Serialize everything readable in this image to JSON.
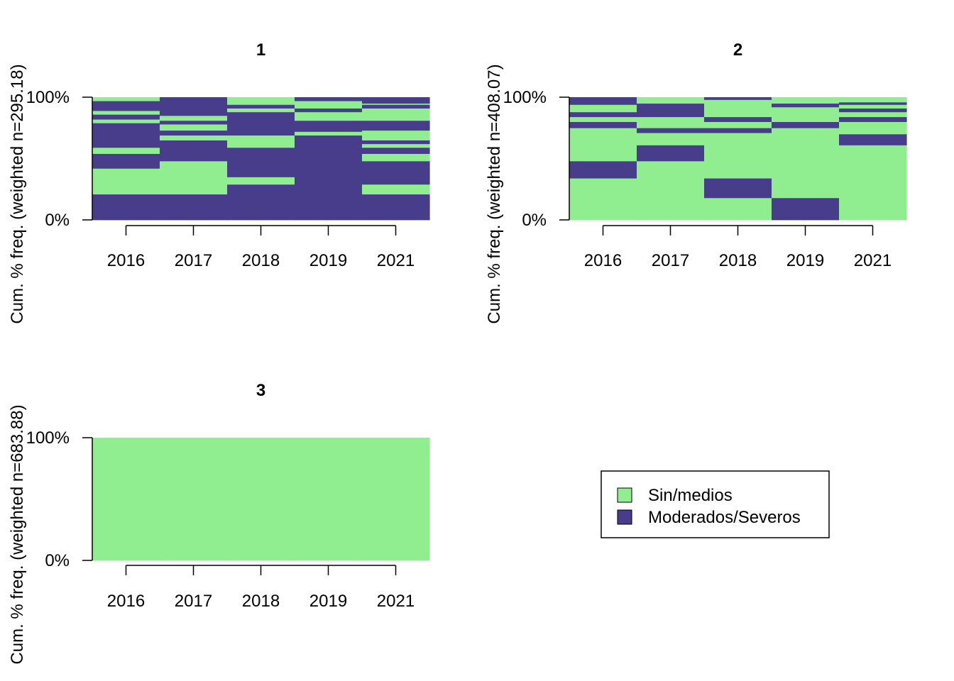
{
  "chart_data": {
    "type": "sequence-index-plot",
    "x": [
      "2016",
      "2017",
      "2018",
      "2019",
      "2021"
    ],
    "ytick_labels": [
      "0%",
      "100%"
    ],
    "legend": {
      "placement": "bottom-right",
      "entries": [
        {
          "label": "Sin/medios",
          "color": "#90EE90"
        },
        {
          "label": "Moderados/Severos",
          "color": "#483D8B"
        }
      ]
    },
    "panels": [
      {
        "title": "1",
        "ylabel": "Cum. % freq. (weighted n=295.18)",
        "columns": [
          [
            [
              "M",
              0,
              21
            ],
            [
              "S",
              21,
              42
            ],
            [
              "M",
              42,
              54
            ],
            [
              "S",
              54,
              59
            ],
            [
              "M",
              59,
              79
            ],
            [
              "S",
              79,
              82
            ],
            [
              "M",
              82,
              86
            ],
            [
              "S",
              86,
              89
            ],
            [
              "M",
              89,
              97
            ],
            [
              "S",
              97,
              100
            ]
          ],
          [
            [
              "M",
              0,
              21
            ],
            [
              "S",
              21,
              48
            ],
            [
              "M",
              48,
              65
            ],
            [
              "S",
              65,
              69
            ],
            [
              "M",
              69,
              73
            ],
            [
              "S",
              73,
              78
            ],
            [
              "M",
              78,
              81
            ],
            [
              "S",
              81,
              85
            ],
            [
              "M",
              85,
              100
            ]
          ],
          [
            [
              "M",
              0,
              29
            ],
            [
              "S",
              29,
              35
            ],
            [
              "M",
              35,
              59
            ],
            [
              "S",
              59,
              69
            ],
            [
              "M",
              69,
              88
            ],
            [
              "S",
              88,
              91
            ],
            [
              "M",
              91,
              94
            ],
            [
              "S",
              94,
              100
            ]
          ],
          [
            [
              "M",
              0,
              69
            ],
            [
              "S",
              69,
              72
            ],
            [
              "M",
              72,
              81
            ],
            [
              "S",
              81,
              88
            ],
            [
              "M",
              88,
              91
            ],
            [
              "S",
              91,
              97
            ],
            [
              "M",
              97,
              100
            ]
          ],
          [
            [
              "M",
              0,
              21
            ],
            [
              "S",
              21,
              29
            ],
            [
              "M",
              29,
              48
            ],
            [
              "S",
              48,
              54
            ],
            [
              "M",
              54,
              59
            ],
            [
              "S",
              59,
              62
            ],
            [
              "M",
              62,
              65
            ],
            [
              "S",
              65,
              73
            ],
            [
              "M",
              73,
              81
            ],
            [
              "S",
              81,
              91
            ],
            [
              "M",
              91,
              94
            ],
            [
              "S",
              94,
              95
            ],
            [
              "M",
              95,
              100
            ]
          ]
        ]
      },
      {
        "title": "2",
        "ylabel": "Cum. % freq. (weighted n=408.07)",
        "columns": [
          [
            [
              "S",
              0,
              34
            ],
            [
              "M",
              34,
              48
            ],
            [
              "S",
              48,
              75
            ],
            [
              "M",
              75,
              80
            ],
            [
              "S",
              80,
              84
            ],
            [
              "M",
              84,
              88
            ],
            [
              "S",
              88,
              94
            ],
            [
              "M",
              94,
              100
            ]
          ],
          [
            [
              "S",
              0,
              48
            ],
            [
              "M",
              48,
              61
            ],
            [
              "S",
              61,
              71
            ],
            [
              "M",
              71,
              75
            ],
            [
              "S",
              75,
              84
            ],
            [
              "M",
              84,
              95
            ],
            [
              "S",
              95,
              100
            ]
          ],
          [
            [
              "S",
              0,
              18
            ],
            [
              "M",
              18,
              34
            ],
            [
              "S",
              34,
              71
            ],
            [
              "M",
              71,
              75
            ],
            [
              "S",
              75,
              80
            ],
            [
              "M",
              80,
              84
            ],
            [
              "S",
              84,
              98
            ],
            [
              "M",
              98,
              100
            ]
          ],
          [
            [
              "M",
              0,
              18
            ],
            [
              "S",
              18,
              75
            ],
            [
              "M",
              75,
              80
            ],
            [
              "S",
              80,
              92
            ],
            [
              "M",
              92,
              95
            ],
            [
              "S",
              95,
              100
            ]
          ],
          [
            [
              "S",
              0,
              61
            ],
            [
              "M",
              61,
              70
            ],
            [
              "S",
              70,
              80
            ],
            [
              "M",
              80,
              84
            ],
            [
              "S",
              84,
              88
            ],
            [
              "M",
              88,
              91
            ],
            [
              "S",
              91,
              94
            ],
            [
              "M",
              94,
              96
            ],
            [
              "S",
              96,
              100
            ]
          ]
        ]
      },
      {
        "title": "3",
        "ylabel": "Cum. % freq. (weighted n=683.88)",
        "columns": [
          [
            [
              "S",
              0,
              100
            ]
          ],
          [
            [
              "S",
              0,
              100
            ]
          ],
          [
            [
              "S",
              0,
              100
            ]
          ],
          [
            [
              "S",
              0,
              100
            ]
          ],
          [
            [
              "S",
              0,
              100
            ]
          ]
        ]
      }
    ]
  }
}
